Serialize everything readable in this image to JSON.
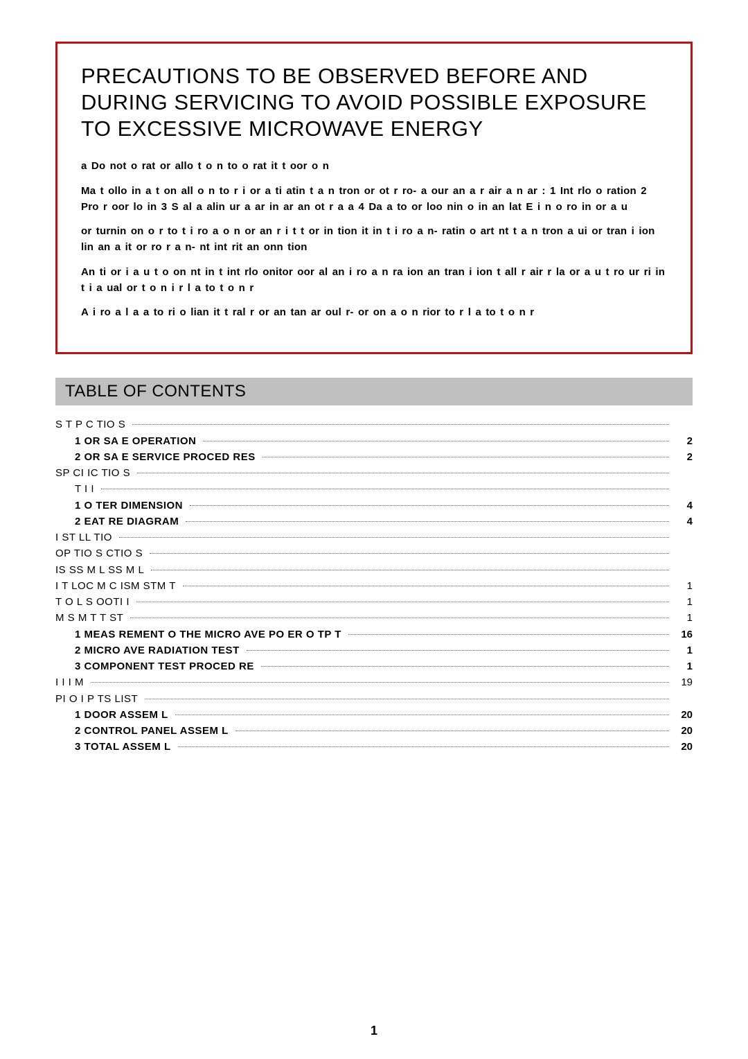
{
  "colors": {
    "warning_border": "#c01010",
    "toc_header_bg": "#bfbfbf",
    "text": "#000000",
    "leader": "#666666",
    "page_bg": "#ffffff"
  },
  "typography": {
    "title_fontsize_pt": 23,
    "body_fontsize_pt": 11,
    "body_weight": 700,
    "toc_header_fontsize_pt": 18
  },
  "precautions": {
    "title": "PRECAUTIONS TO BE OBSERVED BEFORE AND DURING SERVICING TO AVOID POSSIBLE EXPOSURE TO EXCESSIVE MICROWAVE ENERGY",
    "paragraphs": [
      "a  Do not o  rat  or allo  t   o  n to   o  rat   it  t    oor o  n",
      "   Ma   t    ollo  in   a   t        on all o   n to     r  i      or  a  ti atin  t    a  n tron or ot  r     ro-     a    our   an   a   r  air  a  n    ar :  1  Int rlo   o  ration  2  Pro  r   oor  lo  in   3  S al a      alin   ur a    ar in    ar an  ot  r  a  a     4  Da  a    to or loo  nin  o   in    an   lat      E  i   n   o   ro   in  or a  u",
      "    or  turnin  on  o   r to t    i  ro a   o  n or an    r  i  t   t or in    tion  it in t    i  ro a      n-   ratin   o   art   nt      t     a  n tron   a    ui   or tran  i  ion lin   an   a it   or  ro  r a    n-    nt int  rit  an    onn  tion",
      "   An      ti   or   i a  u t    o    on nt  in t   int rlo     onitor   oor   al an    i  ro a     n ra ion    an   tran  i   ion   t      all   r  air   r  la    or a u t     ro    ur     ri    in t i   a  ual      or  t   o  n i r l a    to t   o  n r",
      "   A   i ro a   l a a      to  ri   o   lian   it  t     ral   r or  an    tan ar    oul      r-    or    on  a   o  n  rior to r l a   to t   o  n r"
    ]
  },
  "toc_header": "TABLE OF CONTENTS",
  "toc": [
    {
      "label": "S    T     P   C   TIO  S",
      "page": "",
      "indent": 0,
      "bold": false
    },
    {
      "label": "1   OR SA  E OPERATION",
      "page": "2",
      "indent": 1,
      "bold": true
    },
    {
      "label": "2   OR SA  E SERVICE PROCED  RES",
      "page": "2",
      "indent": 1,
      "bold": true
    },
    {
      "label": "SP CI IC TIO  S",
      "page": "",
      "indent": 0,
      "bold": false
    },
    {
      "label": "T      I   I",
      "page": "",
      "indent": 1,
      "bold": false
    },
    {
      "label": "1  O  TER DIMENSION",
      "page": "4",
      "indent": 1,
      "bold": true
    },
    {
      "label": "2   EAT  RE DIAGRAM",
      "page": "4",
      "indent": 1,
      "bold": true
    },
    {
      "label": "I ST LL TIO",
      "page": "",
      "indent": 0,
      "bold": false
    },
    {
      "label": "OP   TIO S      CTIO  S",
      "page": "",
      "indent": 0,
      "bold": false
    },
    {
      "label": "IS SS M L     SS M L",
      "page": "",
      "indent": 0,
      "bold": false
    },
    {
      "label": "I T   LOC  M C   ISM       STM   T",
      "page": "1",
      "indent": 0,
      "bold": false
    },
    {
      "label": "T O   L S  OOTI     I",
      "page": "1",
      "indent": 0,
      "bold": false
    },
    {
      "label": "M  S    M  T    T ST",
      "page": "1",
      "indent": 0,
      "bold": false
    },
    {
      "label": "1  MEAS  REMENT O   THE MICRO  AVE PO  ER O  TP  T",
      "page": "16",
      "indent": 1,
      "bold": true
    },
    {
      "label": "2  MICRO   AVE RADIATION TEST",
      "page": "1",
      "indent": 1,
      "bold": true
    },
    {
      "label": "3  COMPONENT TEST PROCED  RE",
      "page": "1",
      "indent": 1,
      "bold": true
    },
    {
      "label": "I I     I     M",
      "page": "19",
      "indent": 0,
      "bold": false
    },
    {
      "label": "PI O      I      P  TS LIST",
      "page": "",
      "indent": 0,
      "bold": false
    },
    {
      "label": "1  DOOR ASSEM  L",
      "page": "20",
      "indent": 1,
      "bold": true
    },
    {
      "label": "2  CONTROL PANEL ASSEM  L",
      "page": "20",
      "indent": 1,
      "bold": true
    },
    {
      "label": "3  TOTAL ASSEM  L",
      "page": "20",
      "indent": 1,
      "bold": true
    }
  ],
  "page_number": "1"
}
